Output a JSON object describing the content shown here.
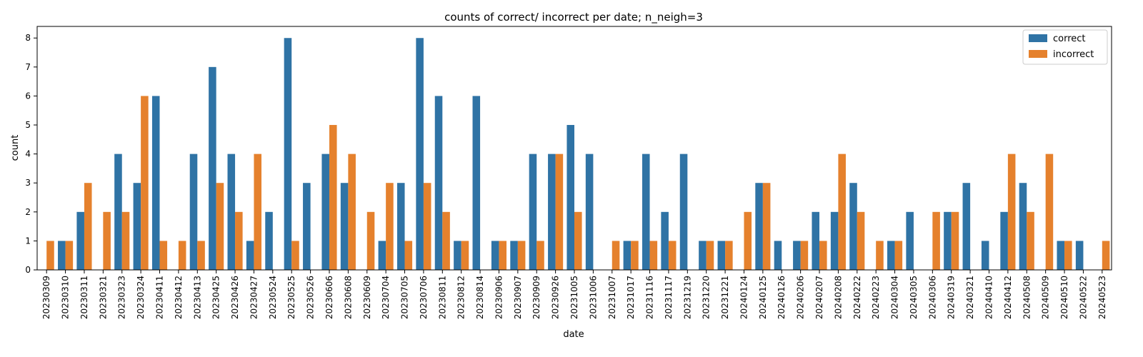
{
  "chart_data": {
    "type": "bar",
    "title": "counts of correct/ incorrect per date; n_neigh=3",
    "xlabel": "date",
    "ylabel": "count",
    "ylim": [
      0,
      8.4
    ],
    "yticks": [
      0,
      1,
      2,
      3,
      4,
      5,
      6,
      7,
      8
    ],
    "grid": false,
    "legend": "top-right",
    "categories": [
      "20230309",
      "20230310",
      "20230311",
      "20230321",
      "20230323",
      "20230324",
      "20230411",
      "20230412",
      "20230413",
      "20230425",
      "20230426",
      "20230427",
      "20230524",
      "20230525",
      "20230526",
      "20230606",
      "20230608",
      "20230609",
      "20230704",
      "20230705",
      "20230706",
      "20230811",
      "20230812",
      "20230814",
      "20230906",
      "20230907",
      "20230909",
      "20230926",
      "20231005",
      "20231006",
      "20231007",
      "20231017",
      "20231116",
      "20231117",
      "20231219",
      "20231220",
      "20231221",
      "20240124",
      "20240125",
      "20240126",
      "20240206",
      "20240207",
      "20240208",
      "20240222",
      "20240223",
      "20240304",
      "20240305",
      "20240306",
      "20240319",
      "20240321",
      "20240410",
      "20240412",
      "20240508",
      "20240509",
      "20240510",
      "20240522",
      "20240523"
    ],
    "series": [
      {
        "name": "correct",
        "color": "#2f73a5",
        "values": [
          0,
          1,
          2,
          0,
          4,
          3,
          6,
          0,
          4,
          7,
          4,
          1,
          2,
          8,
          3,
          4,
          3,
          0,
          1,
          3,
          8,
          6,
          1,
          6,
          1,
          1,
          4,
          4,
          5,
          4,
          0,
          1,
          4,
          2,
          4,
          1,
          1,
          0,
          3,
          1,
          1,
          2,
          2,
          3,
          0,
          1,
          2,
          0,
          2,
          3,
          1,
          2,
          3,
          0,
          1,
          1,
          0
        ]
      },
      {
        "name": "incorrect",
        "color": "#e5812d",
        "values": [
          1,
          1,
          3,
          2,
          2,
          6,
          1,
          1,
          1,
          3,
          2,
          4,
          0,
          1,
          0,
          5,
          4,
          2,
          3,
          1,
          3,
          2,
          1,
          0,
          1,
          1,
          1,
          4,
          2,
          0,
          1,
          1,
          1,
          1,
          0,
          1,
          1,
          2,
          3,
          0,
          1,
          1,
          4,
          2,
          1,
          1,
          0,
          2,
          2,
          0,
          0,
          4,
          2,
          4,
          1,
          0,
          1
        ]
      }
    ]
  }
}
